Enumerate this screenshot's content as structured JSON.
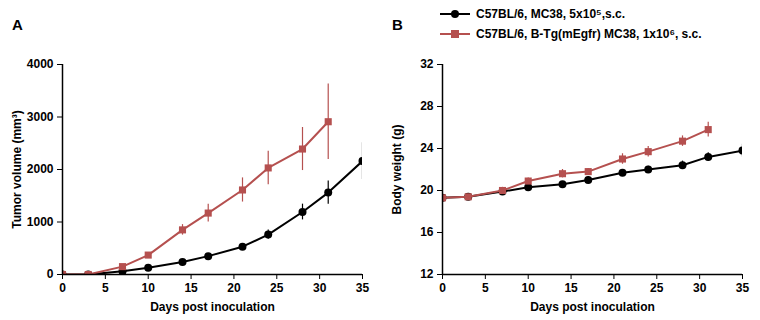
{
  "chart_data": [
    {
      "type": "line",
      "title": "A",
      "x_label": "Days post inoculation",
      "y_label": "Tumor volume (mm³)",
      "xlim": [
        0,
        35
      ],
      "xticks": [
        0,
        5,
        10,
        15,
        20,
        25,
        30,
        35
      ],
      "ylim": [
        0,
        4000
      ],
      "yticks": [
        0,
        1000,
        2000,
        3000,
        4000
      ],
      "series": [
        {
          "name": "C57BL/6, MC38, 5x10⁵,s.c.",
          "color": "#000000",
          "marker": "circle",
          "x": [
            0,
            3,
            7,
            10,
            14,
            17,
            21,
            24,
            28,
            31,
            35
          ],
          "values": [
            0,
            0,
            60,
            130,
            240,
            350,
            530,
            760,
            1190,
            1560,
            2160
          ],
          "errors": [
            0,
            0,
            10,
            20,
            30,
            40,
            60,
            90,
            150,
            220,
            350
          ]
        },
        {
          "name": "C57BL/6, B-Tg(mEgfr) MC38, 1x10⁶, s.c.",
          "color": "#b5504f",
          "marker": "square",
          "x": [
            0,
            3,
            7,
            10,
            14,
            17,
            21,
            24,
            28,
            31
          ],
          "values": [
            0,
            0,
            150,
            370,
            850,
            1170,
            1610,
            2030,
            2390,
            2910
          ],
          "errors": [
            0,
            0,
            20,
            40,
            100,
            170,
            230,
            320,
            410,
            720
          ]
        }
      ]
    },
    {
      "type": "line",
      "title": "B",
      "legend": "top",
      "x_label": "Days post inoculation",
      "y_label": "Body weight (g)",
      "xlim": [
        0,
        35
      ],
      "xticks": [
        0,
        5,
        10,
        15,
        20,
        25,
        30,
        35
      ],
      "ylim": [
        12,
        32
      ],
      "yticks": [
        12,
        16,
        20,
        24,
        28,
        32
      ],
      "series": [
        {
          "name": "C57BL/6, MC38, 5x10⁵,s.c.",
          "color": "#000000",
          "marker": "circle",
          "x": [
            0,
            3,
            7,
            10,
            14,
            17,
            21,
            24,
            28,
            31,
            35
          ],
          "values": [
            19.3,
            19.4,
            19.9,
            20.3,
            20.6,
            21.0,
            21.7,
            22.0,
            22.4,
            23.2,
            23.8
          ],
          "errors": [
            0.3,
            0.2,
            0.3,
            0.3,
            0.2,
            0.3,
            0.3,
            0.3,
            0.4,
            0.4,
            0.6
          ]
        },
        {
          "name": "C57BL/6, B-Tg(mEgfr) MC38, 1x10⁶, s.c.",
          "color": "#b5504f",
          "marker": "square",
          "x": [
            0,
            3,
            7,
            10,
            14,
            17,
            21,
            24,
            28,
            31
          ],
          "values": [
            19.3,
            19.4,
            20.0,
            20.9,
            21.6,
            21.8,
            23.0,
            23.7,
            24.7,
            25.8
          ],
          "errors": [
            0.3,
            0.2,
            0.3,
            0.3,
            0.4,
            0.3,
            0.5,
            0.5,
            0.5,
            0.7
          ]
        }
      ]
    }
  ]
}
